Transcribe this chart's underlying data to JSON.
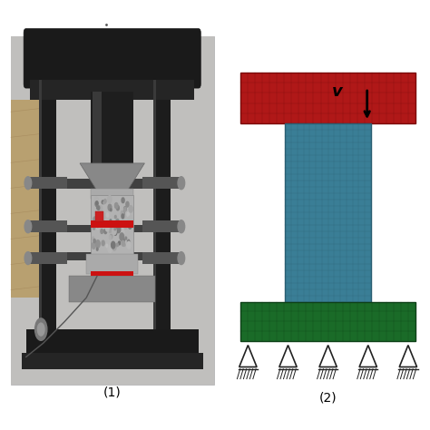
{
  "fig_width": 4.74,
  "fig_height": 4.74,
  "dpi": 100,
  "bg_color": "#ffffff",
  "label1": "(1)",
  "label2": "(2)",
  "label_fontsize": 10,
  "velocity_label": "v",
  "velocity_fontsize": 13,
  "top_plate_color": "#b01818",
  "top_plate_grid_color": "#7a0a0a",
  "bottom_plate_color": "#1a6b28",
  "bottom_plate_grid_color": "#0e4018",
  "cylinder_color": "#3a7e96",
  "cylinder_grid_color": "#2a5e72",
  "arrow_color": "#000000",
  "support_color": "#222222",
  "photo_border": "#cccccc",
  "photo_bg_light": "#c8c8c8",
  "photo_bg_dark": "#383838",
  "machine_black": "#1a1a1a",
  "machine_dark": "#2d2d2d",
  "machine_gray": "#707070",
  "machine_silver": "#999999",
  "machine_light": "#b8b8b8",
  "specimen_color": "#a8a8a8",
  "red_band": "#cc1111",
  "wood_color": "#b8a070"
}
